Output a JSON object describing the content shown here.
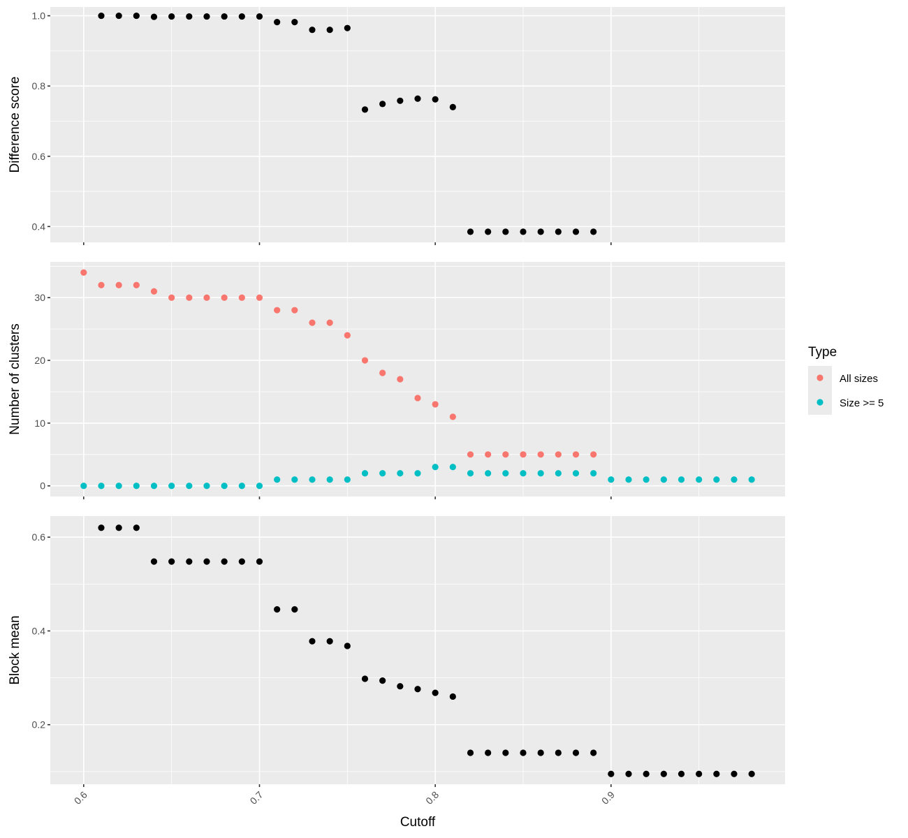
{
  "chart_data": {
    "type": "scatter",
    "xlabel": "Cutoff",
    "x_ticks": [
      "0.6",
      "0.7",
      "0.8",
      "0.9"
    ],
    "x_tick_values": [
      0.6,
      0.7,
      0.8,
      0.9
    ],
    "xlim": [
      0.581,
      0.999
    ],
    "grid": true,
    "legend": {
      "title": "Type",
      "placement": "right",
      "entries": [
        {
          "label": "All sizes",
          "color": "#F8766D"
        },
        {
          "label": "Size >= 5",
          "color": "#00BFC4"
        }
      ]
    },
    "panels": [
      {
        "id": "difference",
        "ylabel": "Difference score",
        "ylim": [
          0.355,
          1.025
        ],
        "y_ticks": [
          "0.4",
          "0.6",
          "0.8",
          "1.0"
        ],
        "y_tick_values": [
          0.4,
          0.6,
          0.8,
          1.0
        ],
        "y_minor": [
          0.5,
          0.7,
          0.9
        ],
        "series": [
          {
            "color": "#000000",
            "x": [
              0.61,
              0.62,
              0.63,
              0.64,
              0.65,
              0.66,
              0.67,
              0.68,
              0.69,
              0.7,
              0.71,
              0.72,
              0.73,
              0.74,
              0.75,
              0.76,
              0.77,
              0.78,
              0.79,
              0.8,
              0.81,
              0.82,
              0.83,
              0.84,
              0.85,
              0.86,
              0.87,
              0.88,
              0.89
            ],
            "y": [
              1.0,
              1.0,
              1.0,
              0.997,
              0.998,
              0.998,
              0.998,
              0.998,
              0.998,
              0.998,
              0.982,
              0.982,
              0.96,
              0.96,
              0.965,
              0.733,
              0.749,
              0.758,
              0.764,
              0.762,
              0.74,
              0.385,
              0.385,
              0.385,
              0.385,
              0.385,
              0.385,
              0.385,
              0.385
            ]
          }
        ]
      },
      {
        "id": "clusters",
        "ylabel": "Number of clusters",
        "ylim": [
          -1.7,
          35.7
        ],
        "y_ticks": [
          "0",
          "10",
          "20",
          "30"
        ],
        "y_tick_values": [
          0,
          10,
          20,
          30
        ],
        "y_minor": [
          5,
          15,
          25,
          35
        ],
        "series": [
          {
            "name": "All sizes",
            "color": "#F8766D",
            "x": [
              0.6,
              0.61,
              0.62,
              0.63,
              0.64,
              0.65,
              0.66,
              0.67,
              0.68,
              0.69,
              0.7,
              0.71,
              0.72,
              0.73,
              0.74,
              0.75,
              0.76,
              0.77,
              0.78,
              0.79,
              0.8,
              0.81,
              0.82,
              0.83,
              0.84,
              0.85,
              0.86,
              0.87,
              0.88,
              0.89
            ],
            "y": [
              34,
              32,
              32,
              32,
              31,
              30,
              30,
              30,
              30,
              30,
              30,
              28,
              28,
              26,
              26,
              24,
              20,
              18,
              17,
              14,
              13,
              11,
              5,
              5,
              5,
              5,
              5,
              5,
              5,
              5
            ]
          },
          {
            "name": "Size >= 5",
            "color": "#00BFC4",
            "x": [
              0.6,
              0.61,
              0.62,
              0.63,
              0.64,
              0.65,
              0.66,
              0.67,
              0.68,
              0.69,
              0.7,
              0.71,
              0.72,
              0.73,
              0.74,
              0.75,
              0.76,
              0.77,
              0.78,
              0.79,
              0.8,
              0.81,
              0.82,
              0.83,
              0.84,
              0.85,
              0.86,
              0.87,
              0.88,
              0.89,
              0.9,
              0.91,
              0.92,
              0.93,
              0.94,
              0.95,
              0.96,
              0.97,
              0.98
            ],
            "y": [
              0,
              0,
              0,
              0,
              0,
              0,
              0,
              0,
              0,
              0,
              0,
              1,
              1,
              1,
              1,
              1,
              2,
              2,
              2,
              2,
              3,
              3,
              2,
              2,
              2,
              2,
              2,
              2,
              2,
              2,
              1,
              1,
              1,
              1,
              1,
              1,
              1,
              1,
              1
            ]
          }
        ]
      },
      {
        "id": "block",
        "ylabel": "Block mean",
        "ylim": [
          0.073,
          0.645
        ],
        "y_ticks": [
          "0.2",
          "0.4",
          "0.6"
        ],
        "y_tick_values": [
          0.2,
          0.4,
          0.6
        ],
        "y_minor": [
          0.1,
          0.3,
          0.5
        ],
        "series": [
          {
            "color": "#000000",
            "x": [
              0.61,
              0.62,
              0.63,
              0.64,
              0.65,
              0.66,
              0.67,
              0.68,
              0.69,
              0.7,
              0.71,
              0.72,
              0.73,
              0.74,
              0.75,
              0.76,
              0.77,
              0.78,
              0.79,
              0.8,
              0.81,
              0.82,
              0.83,
              0.84,
              0.85,
              0.86,
              0.87,
              0.88,
              0.89,
              0.9,
              0.91,
              0.92,
              0.93,
              0.94,
              0.95,
              0.96,
              0.97,
              0.98
            ],
            "y": [
              0.62,
              0.62,
              0.62,
              0.548,
              0.548,
              0.548,
              0.548,
              0.548,
              0.548,
              0.548,
              0.446,
              0.446,
              0.378,
              0.378,
              0.368,
              0.298,
              0.294,
              0.282,
              0.276,
              0.268,
              0.26,
              0.14,
              0.14,
              0.14,
              0.14,
              0.14,
              0.14,
              0.14,
              0.14,
              0.095,
              0.095,
              0.095,
              0.095,
              0.095,
              0.095,
              0.095,
              0.095,
              0.095
            ]
          }
        ]
      }
    ]
  }
}
